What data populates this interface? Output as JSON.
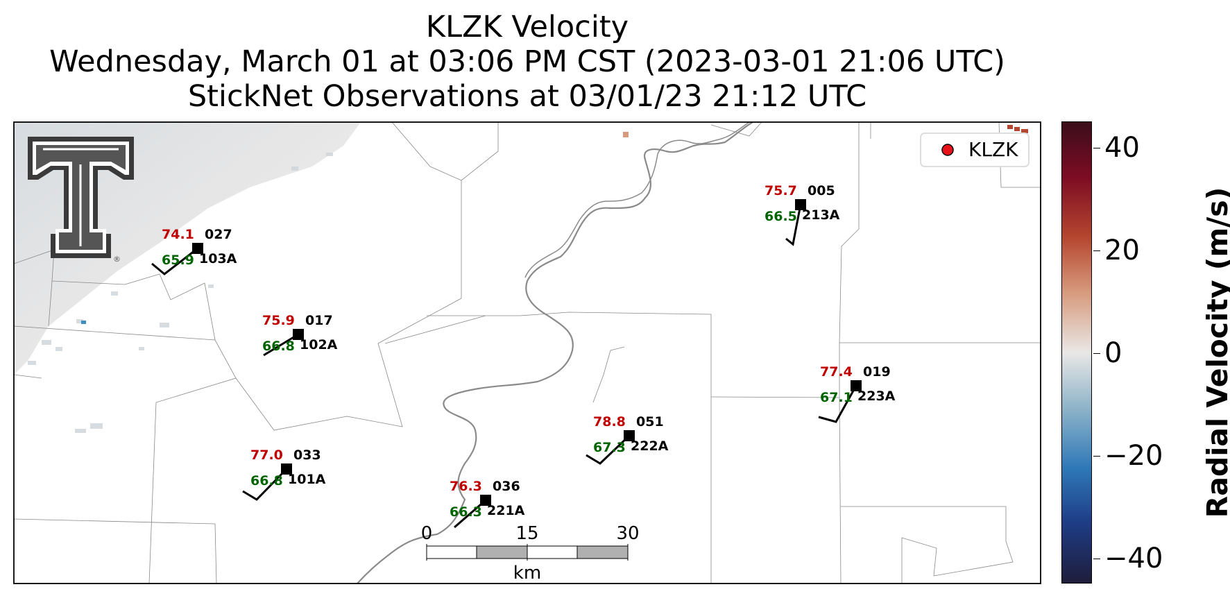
{
  "title": {
    "line1": "KLZK Velocity",
    "line2": "Wednesday, March 01 at 03:06 PM CST (2023-03-01 21:06 UTC)",
    "line3": "StickNet Observations at 03/01/23 21:12 UTC"
  },
  "legend": {
    "label": "KLZK",
    "marker_color": "#e8121a"
  },
  "logo": {
    "name": "Texas Tech double-T logo",
    "mark": "®"
  },
  "scalebar": {
    "ticks": [
      "0",
      "15",
      "30"
    ],
    "unit": "km"
  },
  "colorbar": {
    "label": "Radial Velocity (m/s)",
    "ticks": [
      "40",
      "20",
      "0",
      "−20",
      "−40"
    ],
    "range": [
      -45,
      45
    ],
    "colors": [
      "#1f1d3a",
      "#1e3c86",
      "#2f79b8",
      "#8fb4c9",
      "#e9e7e6",
      "#d79a7d",
      "#b5462f",
      "#7d0c23",
      "#3b0d1a"
    ]
  },
  "stations": [
    {
      "temp": "74.1",
      "dewpoint": "65.9",
      "id": "027",
      "sensor": "103A"
    },
    {
      "temp": "75.9",
      "dewpoint": "66.8",
      "id": "017",
      "sensor": "102A"
    },
    {
      "temp": "77.0",
      "dewpoint": "66.8",
      "id": "033",
      "sensor": "101A"
    },
    {
      "temp": "76.3",
      "dewpoint": "66.3",
      "id": "036",
      "sensor": "221A"
    },
    {
      "temp": "78.8",
      "dewpoint": "67.3",
      "id": "051",
      "sensor": "222A"
    },
    {
      "temp": "75.7",
      "dewpoint": "66.5",
      "id": "005",
      "sensor": "213A"
    },
    {
      "temp": "77.4",
      "dewpoint": "67.1",
      "id": "019",
      "sensor": "223A"
    }
  ],
  "style": {
    "temp_color": "#c00000",
    "dewpoint_color": "#006400",
    "river_color": "#8a8a8a"
  }
}
